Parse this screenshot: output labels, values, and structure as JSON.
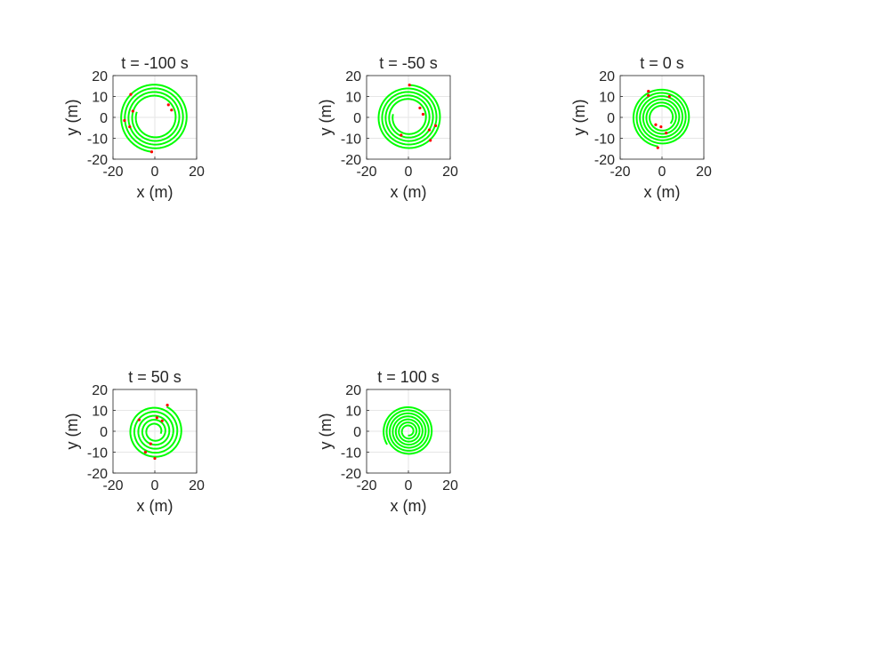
{
  "chart_data": [
    {
      "type": "line",
      "title": "t = -100 s",
      "xlabel": "x (m)",
      "ylabel": "y (m)",
      "xlim": [
        -20,
        20
      ],
      "ylim": [
        -20,
        20
      ],
      "xticks": [
        "-20",
        "0",
        "20"
      ],
      "yticks": [
        "-20",
        "-10",
        "0",
        "10",
        "20"
      ],
      "grid": true,
      "spiral": {
        "r_inner": 9.0,
        "r_outer": 16.5,
        "turns": 4,
        "start_angle_deg": 5,
        "end_angle_deg": 264
      },
      "markers": [
        [
          -11.5,
          11.0
        ],
        [
          6.5,
          6.0
        ],
        [
          8.0,
          3.5
        ],
        [
          -10.5,
          3.0
        ],
        [
          -14.5,
          -1.5
        ],
        [
          -12.0,
          -4.5
        ],
        [
          -1.5,
          -16.5
        ]
      ]
    },
    {
      "type": "line",
      "title": "t = -50 s",
      "xlabel": "x (m)",
      "ylabel": "y (m)",
      "xlim": [
        -20,
        20
      ],
      "ylim": [
        -20,
        20
      ],
      "xticks": [
        "-20",
        "0",
        "20"
      ],
      "yticks": [
        "-20",
        "-10",
        "0",
        "10",
        "20"
      ],
      "grid": true,
      "spiral": {
        "r_inner": 7.5,
        "r_outer": 15.5,
        "turns": 4,
        "start_angle_deg": 12,
        "end_angle_deg": 450
      },
      "markers": [
        [
          0.5,
          15.5
        ],
        [
          5.5,
          4.5
        ],
        [
          7.0,
          1.5
        ],
        [
          13.0,
          -4.0
        ],
        [
          10.0,
          -6.0
        ],
        [
          -3.5,
          -8.5
        ],
        [
          10.5,
          -11.0
        ]
      ]
    },
    {
      "type": "line",
      "title": "t = 0 s",
      "xlabel": "x (m)",
      "ylabel": "y (m)",
      "xlim": [
        -20,
        20
      ],
      "ylim": [
        -20,
        20
      ],
      "xticks": [
        "-20",
        "0",
        "20"
      ],
      "yticks": [
        "-20",
        "-10",
        "0",
        "10",
        "20"
      ],
      "grid": true,
      "spiral": {
        "r_inner": 5.0,
        "r_outer": 14.0,
        "turns": 5,
        "start_angle_deg": 200,
        "end_angle_deg": 262
      },
      "markers": [
        [
          -6.5,
          12.5
        ],
        [
          -6.5,
          10.5
        ],
        [
          3.5,
          10.0
        ],
        [
          -3.0,
          -3.5
        ],
        [
          -0.5,
          -4.5
        ],
        [
          2.0,
          -7.5
        ],
        [
          -2.0,
          -14.5
        ]
      ]
    },
    {
      "type": "line",
      "title": "t = 50 s",
      "xlabel": "x (m)",
      "ylabel": "y (m)",
      "xlim": [
        -20,
        20
      ],
      "ylim": [
        -20,
        20
      ],
      "xticks": [
        "-20",
        "0",
        "20"
      ],
      "yticks": [
        "-20",
        "-10",
        "0",
        "10",
        "20"
      ],
      "grid": true,
      "spiral": {
        "r_inner": 3.0,
        "r_outer": 13.0,
        "turns": 5,
        "start_angle_deg": 150,
        "end_angle_deg": 64
      },
      "markers": [
        [
          6.0,
          12.5
        ],
        [
          -7.5,
          5.5
        ],
        [
          1.0,
          6.5
        ],
        [
          3.5,
          5.0
        ],
        [
          -2.0,
          -6.0
        ],
        [
          -4.5,
          -10.0
        ],
        [
          0.0,
          -13.0
        ]
      ]
    },
    {
      "type": "line",
      "title": "t = 100 s",
      "xlabel": "x (m)",
      "ylabel": "y (m)",
      "xlim": [
        -20,
        20
      ],
      "ylim": [
        -20,
        20
      ],
      "xticks": [
        "-20",
        "0",
        "20"
      ],
      "yticks": [
        "-20",
        "-10",
        "0",
        "10",
        "20"
      ],
      "grid": true,
      "spiral": {
        "r_inner": 2.0,
        "r_outer": 12.0,
        "turns": 6,
        "start_angle_deg": 160,
        "end_angle_deg": 212
      },
      "markers": []
    }
  ]
}
